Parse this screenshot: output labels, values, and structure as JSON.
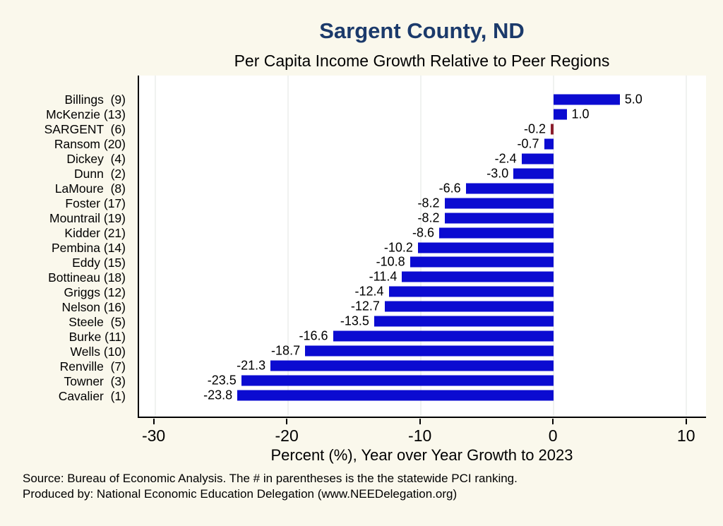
{
  "title": "Sargent County, ND",
  "subtitle": "Per Capita Income Growth Relative to Peer Regions",
  "xlabel": "Percent (%), Year over Year Growth to 2023",
  "source_line1": "Source: Bureau of Economic Analysis. The # in parentheses is the the statewide PCI ranking.",
  "source_line2": "Produced by: National Economic Education Delegation (www.NEEDelegation.org)",
  "colors": {
    "background": "#FAF8EC",
    "plot_background": "#FFFFFF",
    "bar": "#0B0BD1",
    "highlight_bar": "#8B1E2D",
    "title": "#1B3A6B",
    "gridline": "#E2E6E2"
  },
  "chart_data": {
    "type": "bar",
    "orientation": "horizontal",
    "title": "Sargent County, ND",
    "subtitle": "Per Capita Income Growth Relative to Peer Regions",
    "xlabel": "Percent (%), Year over Year Growth to 2023",
    "categories": [
      "Billings  (9)",
      "McKenzie (13)",
      "SARGENT  (6)",
      "Ransom (20)",
      "Dickey  (4)",
      "Dunn  (2)",
      "LaMoure  (8)",
      "Foster (17)",
      "Mountrail (19)",
      "Kidder (21)",
      "Pembina (14)",
      "Eddy (15)",
      "Bottineau (18)",
      "Griggs (12)",
      "Nelson (16)",
      "Steele  (5)",
      "Burke (11)",
      "Wells (10)",
      "Renville  (7)",
      "Towner  (3)",
      "Cavalier  (1)"
    ],
    "values": [
      5.0,
      1.0,
      -0.2,
      -0.7,
      -2.4,
      -3.0,
      -6.6,
      -8.2,
      -8.2,
      -8.6,
      -10.2,
      -10.8,
      -11.4,
      -12.4,
      -12.7,
      -13.5,
      -16.6,
      -18.7,
      -21.3,
      -23.5,
      -23.8
    ],
    "highlight_index": 2,
    "highlight_category": "SARGENT  (6)",
    "xticks": [
      -30,
      -20,
      -10,
      0,
      10
    ],
    "xlim": [
      -31.2,
      11.5
    ],
    "grid": true,
    "legend": "none"
  }
}
